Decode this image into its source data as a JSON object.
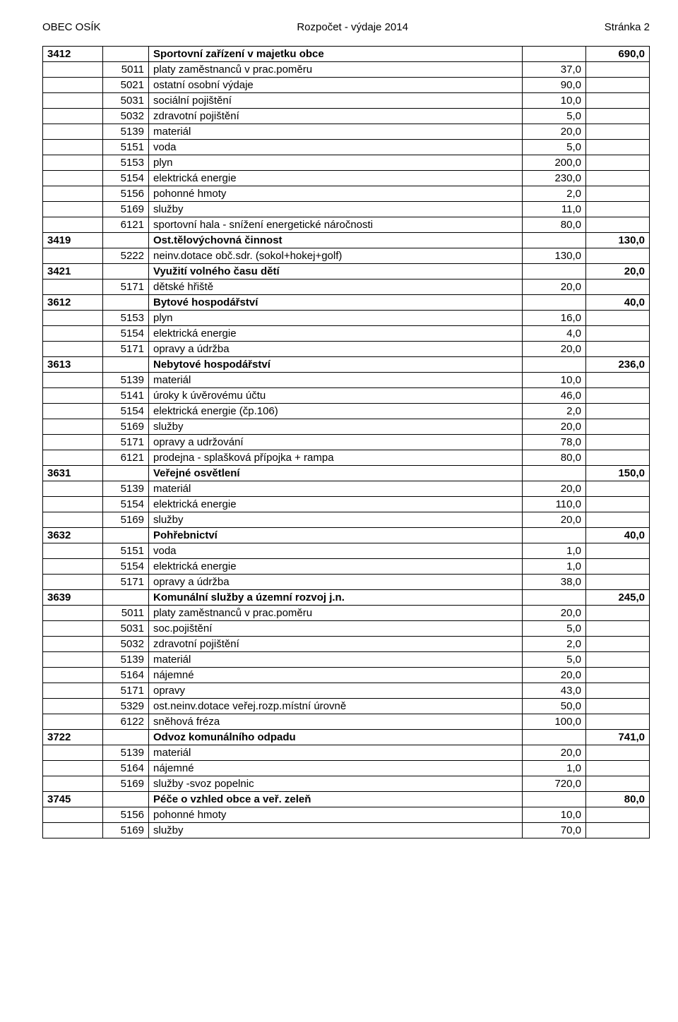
{
  "header": {
    "left": "OBEC OSÍK",
    "center": "Rozpočet - výdaje 2014",
    "right": "Stránka 2"
  },
  "rows": [
    {
      "type": "section",
      "c1": "3412",
      "label": "Sportovní zařízení v majetku obce",
      "total": "690,0"
    },
    {
      "type": "item",
      "c2": "5011",
      "label": "platy zaměstnanců v prac.poměru",
      "val": "37,0"
    },
    {
      "type": "item",
      "c2": "5021",
      "label": "ostatní osobní výdaje",
      "val": "90,0"
    },
    {
      "type": "item",
      "c2": "5031",
      "label": "sociální pojištění",
      "val": "10,0"
    },
    {
      "type": "item",
      "c2": "5032",
      "label": "zdravotní pojištění",
      "val": "5,0"
    },
    {
      "type": "item",
      "c2": "5139",
      "label": "materiál",
      "val": "20,0"
    },
    {
      "type": "item",
      "c2": "5151",
      "label": "voda",
      "val": "5,0"
    },
    {
      "type": "item",
      "c2": "5153",
      "label": "plyn",
      "val": "200,0"
    },
    {
      "type": "item",
      "c2": "5154",
      "label": "elektrická energie",
      "val": "230,0"
    },
    {
      "type": "item",
      "c2": "5156",
      "label": "pohonné hmoty",
      "val": "2,0"
    },
    {
      "type": "item",
      "c2": "5169",
      "label": "služby",
      "val": "11,0"
    },
    {
      "type": "item",
      "c2": "6121",
      "label": "sportovní hala - snížení energetické náročnosti",
      "val": "80,0"
    },
    {
      "type": "section",
      "c1": "3419",
      "label": "Ost.tělovýchovná činnost",
      "total": "130,0"
    },
    {
      "type": "item",
      "c2": "5222",
      "label": "neinv.dotace obč.sdr. (sokol+hokej+golf)",
      "val": "130,0"
    },
    {
      "type": "section",
      "c1": "3421",
      "label": "Využití volného času dětí",
      "total": "20,0"
    },
    {
      "type": "item",
      "c2": "5171",
      "label": "dětské hřiště",
      "val": "20,0"
    },
    {
      "type": "section",
      "c1": "3612",
      "label": "Bytové hospodářství",
      "total": "40,0"
    },
    {
      "type": "item",
      "c2": "5153",
      "label": "plyn",
      "val": "16,0"
    },
    {
      "type": "item",
      "c2": "5154",
      "label": "elektrická energie",
      "val": "4,0"
    },
    {
      "type": "item",
      "c2": "5171",
      "label": "opravy a údržba",
      "val": "20,0"
    },
    {
      "type": "section",
      "c1": "3613",
      "label": "Nebytové hospodářství",
      "total": "236,0"
    },
    {
      "type": "item",
      "c2": "5139",
      "label": "materiál",
      "val": "10,0"
    },
    {
      "type": "item",
      "c2": "5141",
      "label": "úroky k úvěrovému účtu",
      "val": "46,0"
    },
    {
      "type": "item",
      "c2": "5154",
      "label": "elektrická energie (čp.106)",
      "val": "2,0"
    },
    {
      "type": "item",
      "c2": "5169",
      "label": "služby",
      "val": "20,0"
    },
    {
      "type": "item",
      "c2": "5171",
      "label": "opravy a udržování",
      "val": "78,0"
    },
    {
      "type": "item",
      "c2": "6121",
      "label": "prodejna - splašková přípojka + rampa",
      "val": "80,0"
    },
    {
      "type": "section",
      "c1": "3631",
      "label": "Veřejné osvětlení",
      "total": "150,0"
    },
    {
      "type": "item",
      "c2": "5139",
      "label": "materiál",
      "val": "20,0"
    },
    {
      "type": "item",
      "c2": "5154",
      "label": "elektrická energie",
      "val": "110,0"
    },
    {
      "type": "item",
      "c2": "5169",
      "label": "služby",
      "val": "20,0"
    },
    {
      "type": "section",
      "c1": "3632",
      "label": "Pohřebnictví",
      "total": "40,0"
    },
    {
      "type": "item",
      "c2": "5151",
      "label": "voda",
      "val": "1,0"
    },
    {
      "type": "item",
      "c2": "5154",
      "label": "elektrická energie",
      "val": "1,0"
    },
    {
      "type": "item",
      "c2": "5171",
      "label": "opravy a údržba",
      "val": "38,0"
    },
    {
      "type": "section",
      "c1": "3639",
      "label": "Komunální služby a územní rozvoj j.n.",
      "total": "245,0"
    },
    {
      "type": "item",
      "c2": "5011",
      "label": "platy zaměstnanců v prac.poměru",
      "val": "20,0"
    },
    {
      "type": "item",
      "c2": "5031",
      "label": "soc.pojištění",
      "val": "5,0"
    },
    {
      "type": "item",
      "c2": "5032",
      "label": "zdravotní pojištění",
      "val": "2,0"
    },
    {
      "type": "item",
      "c2": "5139",
      "label": "materiál",
      "val": "5,0"
    },
    {
      "type": "item",
      "c2": "5164",
      "label": "nájemné",
      "val": "20,0"
    },
    {
      "type": "item",
      "c2": "5171",
      "label": "opravy",
      "val": "43,0"
    },
    {
      "type": "item",
      "c2": "5329",
      "label": "ost.neinv.dotace veřej.rozp.místní úrovně",
      "val": "50,0"
    },
    {
      "type": "item",
      "c2": "6122",
      "label": "sněhová fréza",
      "val": "100,0"
    },
    {
      "type": "section",
      "c1": "3722",
      "label": "Odvoz komunálního odpadu",
      "total": "741,0"
    },
    {
      "type": "item",
      "c2": "5139",
      "label": "materiál",
      "val": "20,0"
    },
    {
      "type": "item",
      "c2": "5164",
      "label": "nájemné",
      "val": "1,0"
    },
    {
      "type": "item",
      "c2": "5169",
      "label": "služby -svoz popelnic",
      "val": "720,0"
    },
    {
      "type": "section",
      "c1": "3745",
      "label": "Péče o vzhled obce a veř. zeleň",
      "total": "80,0"
    },
    {
      "type": "item",
      "c2": "5156",
      "label": "pohonné hmoty",
      "val": "10,0"
    },
    {
      "type": "item",
      "c2": "5169",
      "label": "služby",
      "val": "70,0"
    }
  ]
}
